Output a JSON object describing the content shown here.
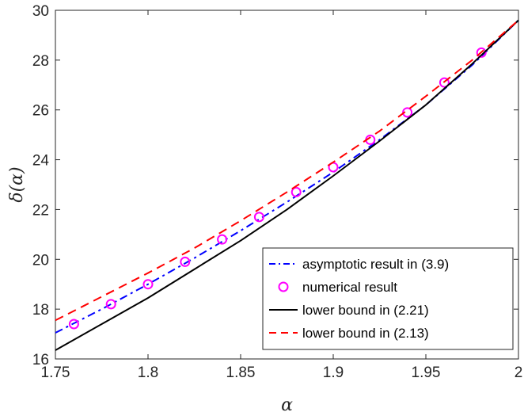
{
  "chart_data": {
    "type": "line",
    "title": "",
    "xlabel": "α",
    "ylabel": "δ(α)",
    "xlim": [
      1.75,
      2.0
    ],
    "ylim": [
      16,
      30
    ],
    "xticks": [
      1.75,
      1.8,
      1.85,
      1.9,
      1.95,
      2.0
    ],
    "xtick_labels": [
      "1.75",
      "1.8",
      "1.85",
      "1.9",
      "1.95",
      "2"
    ],
    "yticks": [
      16,
      18,
      20,
      22,
      24,
      26,
      28,
      30
    ],
    "ytick_labels": [
      "16",
      "18",
      "20",
      "22",
      "24",
      "26",
      "28",
      "30"
    ],
    "grid": false,
    "legend_position": "bottom-right",
    "series": [
      {
        "name": "asymptotic result in (3.9)",
        "style": "dash-dot",
        "color": "#0000ff",
        "x": [
          1.75,
          1.775,
          1.8,
          1.825,
          1.85,
          1.875,
          1.9,
          1.925,
          1.95,
          1.975,
          2.0
        ],
        "y": [
          17.05,
          18.0,
          19.0,
          20.05,
          21.15,
          22.3,
          23.5,
          24.8,
          26.2,
          27.8,
          29.6
        ]
      },
      {
        "name": "numerical result",
        "style": "markers",
        "marker": "circle",
        "color": "#ff00ff",
        "x": [
          1.76,
          1.78,
          1.8,
          1.82,
          1.84,
          1.86,
          1.88,
          1.9,
          1.92,
          1.94,
          1.96,
          1.98
        ],
        "y": [
          17.4,
          18.2,
          19.0,
          19.9,
          20.8,
          21.7,
          22.7,
          23.7,
          24.8,
          25.9,
          27.1,
          28.3
        ]
      },
      {
        "name": "lower bound in (2.21)",
        "style": "solid",
        "color": "#000000",
        "x": [
          1.75,
          1.775,
          1.8,
          1.825,
          1.85,
          1.875,
          1.9,
          1.925,
          1.95,
          1.975,
          2.0
        ],
        "y": [
          16.35,
          17.4,
          18.45,
          19.6,
          20.75,
          22.0,
          23.35,
          24.75,
          26.2,
          27.85,
          29.6
        ]
      },
      {
        "name": "lower bound in (2.13)",
        "style": "dashed",
        "color": "#ff0000",
        "x": [
          1.75,
          1.775,
          1.8,
          1.825,
          1.85,
          1.875,
          1.9,
          1.925,
          1.95,
          1.975,
          2.0
        ],
        "y": [
          17.55,
          18.5,
          19.45,
          20.45,
          21.55,
          22.7,
          23.9,
          25.15,
          26.55,
          28.0,
          29.6
        ]
      }
    ]
  }
}
